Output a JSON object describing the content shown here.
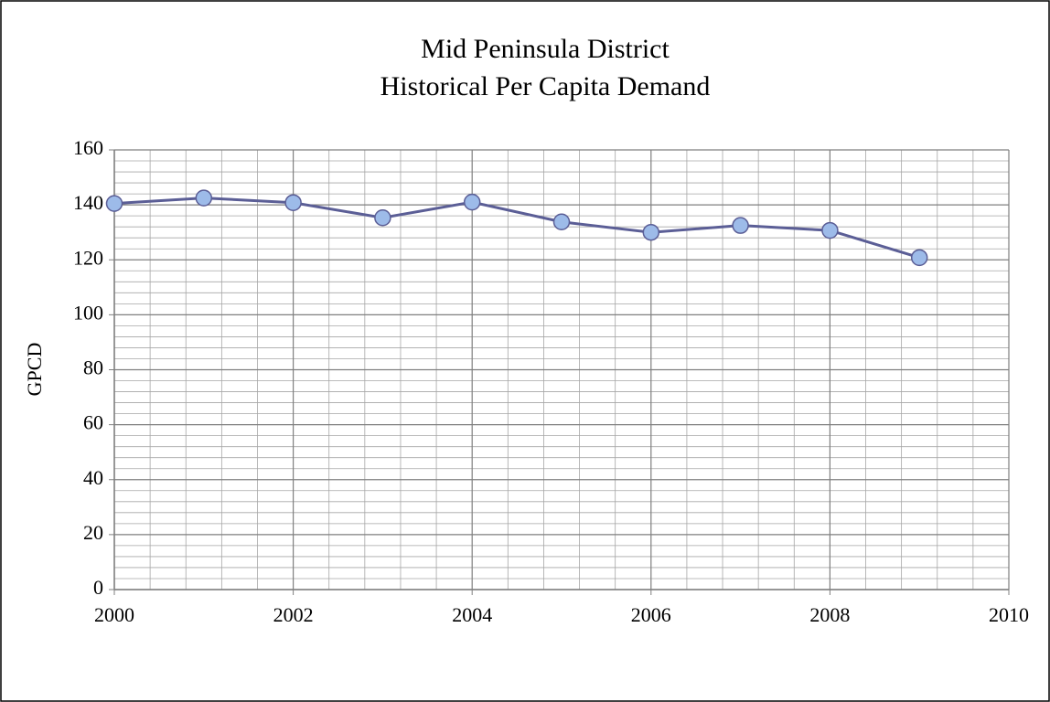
{
  "chart_data": {
    "type": "line",
    "title_lines": [
      "Mid Peninsula District",
      "Historical Per Capita Demand"
    ],
    "y_label": "GPCD",
    "x": [
      2000,
      2001,
      2002,
      2003,
      2004,
      2005,
      2006,
      2007,
      2008,
      2009
    ],
    "series": [
      {
        "name": "GPCD",
        "color": "#5b5e96",
        "marker_color": "#9dbbe9",
        "values": [
          140.5,
          142.5,
          140.8,
          135.3,
          141,
          133.8,
          130,
          132.5,
          130.7,
          120.8
        ]
      }
    ],
    "xlim": [
      2000,
      2010
    ],
    "xticks": [
      2000,
      2002,
      2004,
      2006,
      2008,
      2010
    ],
    "ylim": [
      0,
      160
    ],
    "yticks": [
      0,
      20,
      40,
      60,
      80,
      100,
      120,
      140,
      160
    ],
    "x_minor_ticks": [
      2000.4,
      2000.8,
      2001.2,
      2001.6,
      2002.4,
      2002.8,
      2003.2,
      2003.6,
      2004.4,
      2004.8,
      2005.2,
      2005.6,
      2006.4,
      2006.8,
      2007.2,
      2007.6,
      2008.4,
      2008.8,
      2009.2,
      2009.6
    ],
    "y_minor_ticks": [
      4,
      8,
      12,
      16,
      24,
      28,
      32,
      36,
      44,
      48,
      52,
      56,
      64,
      68,
      72,
      76,
      84,
      88,
      92,
      96,
      104,
      108,
      112,
      116,
      124,
      128,
      132,
      136,
      144,
      148,
      152,
      156
    ],
    "grid": true
  }
}
